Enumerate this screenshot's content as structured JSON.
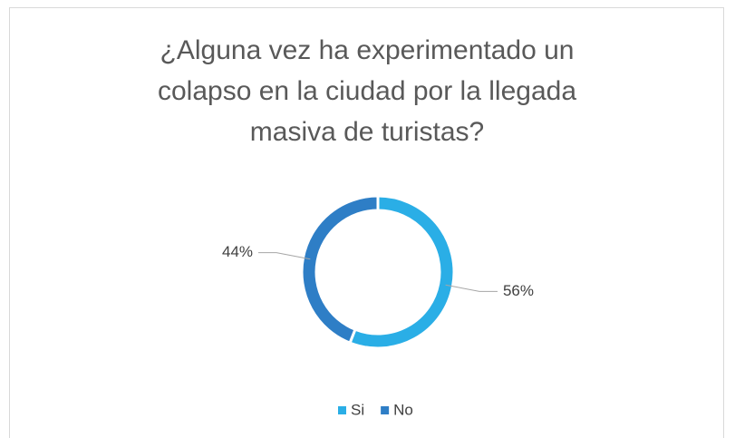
{
  "chart_data": {
    "type": "donut",
    "title": "¿Alguna vez ha experimentado un colapso en la ciudad por la llegada masiva de turistas?",
    "categories": [
      "Si",
      "No"
    ],
    "values": [
      56,
      44
    ],
    "value_labels": [
      "56%",
      "44%"
    ],
    "colors": [
      "#2AAEE6",
      "#2E7EC6"
    ],
    "legend": "bottom"
  }
}
